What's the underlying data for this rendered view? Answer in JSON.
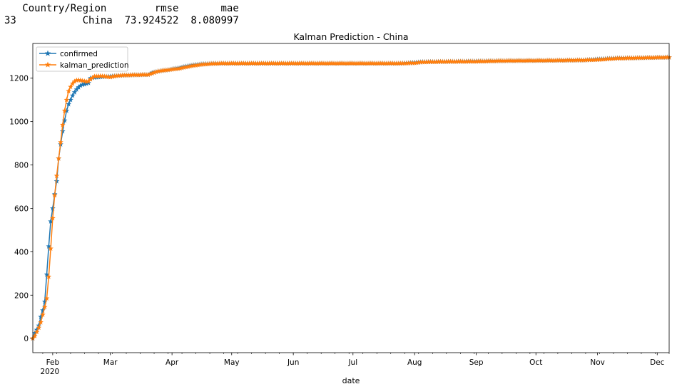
{
  "table": {
    "columns": [
      "Country/Region",
      "rmse",
      "mae"
    ],
    "rows": [
      {
        "index": "33",
        "country": "China",
        "rmse": "73.924522",
        "mae": "8.080997"
      }
    ]
  },
  "chart_data": {
    "type": "line",
    "title": "Kalman Prediction - China",
    "xlabel": "date",
    "ylabel": "",
    "xlim": [
      "2020-01-22",
      "2020-12-07"
    ],
    "ylim": [
      -65,
      1360
    ],
    "x_ticks": [
      {
        "date": "2020-02-01",
        "label": "Feb",
        "sublabel": "2020"
      },
      {
        "date": "2020-03-01",
        "label": "Mar",
        "sublabel": ""
      },
      {
        "date": "2020-04-01",
        "label": "Apr",
        "sublabel": ""
      },
      {
        "date": "2020-05-01",
        "label": "May",
        "sublabel": ""
      },
      {
        "date": "2020-06-01",
        "label": "Jun",
        "sublabel": ""
      },
      {
        "date": "2020-07-01",
        "label": "Jul",
        "sublabel": ""
      },
      {
        "date": "2020-08-01",
        "label": "Aug",
        "sublabel": ""
      },
      {
        "date": "2020-09-01",
        "label": "Sep",
        "sublabel": ""
      },
      {
        "date": "2020-10-01",
        "label": "Oct",
        "sublabel": ""
      },
      {
        "date": "2020-11-01",
        "label": "Nov",
        "sublabel": ""
      },
      {
        "date": "2020-12-01",
        "label": "Dec",
        "sublabel": ""
      }
    ],
    "y_ticks": [
      0,
      200,
      400,
      600,
      800,
      1000,
      1200
    ],
    "grid": false,
    "legend": "top-left",
    "series": [
      {
        "name": "confirmed",
        "color": "#1f77b4",
        "marker": "star",
        "points": [
          [
            "2020-01-22",
            1
          ],
          [
            "2020-01-23",
            25
          ],
          [
            "2020-01-24",
            40
          ],
          [
            "2020-01-25",
            60
          ],
          [
            "2020-01-26",
            100
          ],
          [
            "2020-01-27",
            130
          ],
          [
            "2020-01-28",
            170
          ],
          [
            "2020-01-29",
            295
          ],
          [
            "2020-01-30",
            425
          ],
          [
            "2020-01-31",
            540
          ],
          [
            "2020-02-01",
            600
          ],
          [
            "2020-02-02",
            665
          ],
          [
            "2020-02-03",
            725
          ],
          [
            "2020-02-04",
            830
          ],
          [
            "2020-02-05",
            895
          ],
          [
            "2020-02-06",
            955
          ],
          [
            "2020-02-07",
            1005
          ],
          [
            "2020-02-08",
            1050
          ],
          [
            "2020-02-09",
            1080
          ],
          [
            "2020-02-10",
            1100
          ],
          [
            "2020-02-11",
            1120
          ],
          [
            "2020-02-12",
            1135
          ],
          [
            "2020-02-13",
            1148
          ],
          [
            "2020-02-14",
            1158
          ],
          [
            "2020-02-15",
            1166
          ],
          [
            "2020-02-16",
            1170
          ],
          [
            "2020-02-17",
            1172
          ],
          [
            "2020-02-18",
            1175
          ],
          [
            "2020-02-19",
            1178
          ],
          [
            "2020-02-20",
            1200
          ],
          [
            "2020-02-22",
            1203
          ],
          [
            "2020-02-25",
            1206
          ],
          [
            "2020-03-01",
            1208
          ],
          [
            "2020-03-05",
            1212
          ],
          [
            "2020-03-10",
            1214
          ],
          [
            "2020-03-15",
            1215
          ],
          [
            "2020-03-20",
            1216
          ],
          [
            "2020-03-22",
            1225
          ],
          [
            "2020-03-25",
            1232
          ],
          [
            "2020-03-30",
            1238
          ],
          [
            "2020-04-05",
            1248
          ],
          [
            "2020-04-10",
            1258
          ],
          [
            "2020-04-15",
            1264
          ],
          [
            "2020-04-20",
            1267
          ],
          [
            "2020-04-25",
            1268
          ],
          [
            "2020-05-01",
            1268
          ],
          [
            "2020-06-01",
            1268
          ],
          [
            "2020-07-01",
            1268
          ],
          [
            "2020-07-25",
            1268
          ],
          [
            "2020-08-01",
            1272
          ],
          [
            "2020-08-05",
            1275
          ],
          [
            "2020-08-15",
            1276
          ],
          [
            "2020-09-01",
            1278
          ],
          [
            "2020-09-15",
            1280
          ],
          [
            "2020-10-01",
            1281
          ],
          [
            "2020-10-15",
            1282
          ],
          [
            "2020-10-25",
            1283
          ],
          [
            "2020-11-01",
            1287
          ],
          [
            "2020-11-10",
            1292
          ],
          [
            "2020-11-20",
            1293
          ],
          [
            "2020-12-01",
            1295
          ],
          [
            "2020-12-07",
            1296
          ]
        ]
      },
      {
        "name": "kalman_prediction",
        "color": "#ff7f0e",
        "marker": "star",
        "points": [
          [
            "2020-01-22",
            1
          ],
          [
            "2020-01-23",
            12
          ],
          [
            "2020-01-24",
            30
          ],
          [
            "2020-01-25",
            50
          ],
          [
            "2020-01-26",
            75
          ],
          [
            "2020-01-27",
            110
          ],
          [
            "2020-01-28",
            145
          ],
          [
            "2020-01-29",
            185
          ],
          [
            "2020-01-30",
            285
          ],
          [
            "2020-01-31",
            415
          ],
          [
            "2020-02-01",
            555
          ],
          [
            "2020-02-02",
            660
          ],
          [
            "2020-02-03",
            750
          ],
          [
            "2020-02-04",
            830
          ],
          [
            "2020-02-05",
            905
          ],
          [
            "2020-02-06",
            985
          ],
          [
            "2020-02-07",
            1050
          ],
          [
            "2020-02-08",
            1100
          ],
          [
            "2020-02-09",
            1140
          ],
          [
            "2020-02-10",
            1160
          ],
          [
            "2020-02-11",
            1175
          ],
          [
            "2020-02-12",
            1185
          ],
          [
            "2020-02-13",
            1190
          ],
          [
            "2020-02-14",
            1191
          ],
          [
            "2020-02-15",
            1190
          ],
          [
            "2020-02-16",
            1188
          ],
          [
            "2020-02-17",
            1186
          ],
          [
            "2020-02-18",
            1184
          ],
          [
            "2020-02-19",
            1186
          ],
          [
            "2020-02-20",
            1195
          ],
          [
            "2020-02-22",
            1208
          ],
          [
            "2020-02-25",
            1210
          ],
          [
            "2020-03-01",
            1205
          ],
          [
            "2020-03-05",
            1212
          ],
          [
            "2020-03-10",
            1214
          ],
          [
            "2020-03-15",
            1215
          ],
          [
            "2020-03-20",
            1216
          ],
          [
            "2020-03-22",
            1222
          ],
          [
            "2020-03-25",
            1232
          ],
          [
            "2020-03-30",
            1238
          ],
          [
            "2020-04-05",
            1245
          ],
          [
            "2020-04-10",
            1255
          ],
          [
            "2020-04-15",
            1262
          ],
          [
            "2020-04-20",
            1266
          ],
          [
            "2020-04-25",
            1268
          ],
          [
            "2020-05-01",
            1268
          ],
          [
            "2020-06-01",
            1268
          ],
          [
            "2020-07-01",
            1268
          ],
          [
            "2020-07-25",
            1268
          ],
          [
            "2020-08-01",
            1270
          ],
          [
            "2020-08-05",
            1274
          ],
          [
            "2020-08-15",
            1276
          ],
          [
            "2020-09-01",
            1277
          ],
          [
            "2020-09-15",
            1280
          ],
          [
            "2020-10-01",
            1281
          ],
          [
            "2020-10-15",
            1282
          ],
          [
            "2020-10-25",
            1283
          ],
          [
            "2020-11-01",
            1285
          ],
          [
            "2020-11-10",
            1291
          ],
          [
            "2020-11-20",
            1293
          ],
          [
            "2020-12-01",
            1295
          ],
          [
            "2020-12-07",
            1296
          ]
        ]
      }
    ]
  }
}
